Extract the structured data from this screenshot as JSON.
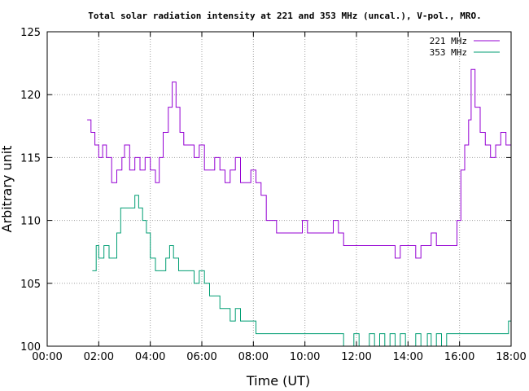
{
  "chart_data": {
    "type": "line",
    "title": "Total solar radiation intensity at 221 and 353 MHz (uncal.), V-pol., MRO.",
    "xlabel": "Time (UT)",
    "ylabel": "Arbitrary unit",
    "xlim": [
      0,
      18
    ],
    "ylim": [
      100,
      125
    ],
    "x_ticks": [
      0,
      2,
      4,
      6,
      8,
      10,
      12,
      14,
      16,
      18
    ],
    "x_tick_labels": [
      "00:00",
      "02:00",
      "04:00",
      "06:00",
      "08:00",
      "10:00",
      "12:00",
      "14:00",
      "16:00",
      "18:00"
    ],
    "y_ticks": [
      100,
      105,
      110,
      115,
      120,
      125
    ],
    "y_tick_labels": [
      "100",
      "105",
      "110",
      "115",
      "120",
      "125"
    ],
    "grid": true,
    "legend_position": "top-right",
    "series": [
      {
        "name": "221 MHz",
        "color": "#9400d3",
        "points": [
          [
            1.55,
            118
          ],
          [
            1.7,
            117
          ],
          [
            1.85,
            116
          ],
          [
            2.0,
            115
          ],
          [
            2.15,
            116
          ],
          [
            2.3,
            115
          ],
          [
            2.5,
            113
          ],
          [
            2.7,
            114
          ],
          [
            2.9,
            115
          ],
          [
            3.0,
            116
          ],
          [
            3.2,
            114
          ],
          [
            3.4,
            115
          ],
          [
            3.6,
            114
          ],
          [
            3.8,
            115
          ],
          [
            4.0,
            114
          ],
          [
            4.2,
            113
          ],
          [
            4.35,
            115
          ],
          [
            4.5,
            117
          ],
          [
            4.7,
            119
          ],
          [
            4.85,
            121
          ],
          [
            5.0,
            119
          ],
          [
            5.15,
            117
          ],
          [
            5.3,
            116
          ],
          [
            5.5,
            116
          ],
          [
            5.7,
            115
          ],
          [
            5.9,
            116
          ],
          [
            6.1,
            114
          ],
          [
            6.3,
            114
          ],
          [
            6.5,
            115
          ],
          [
            6.7,
            114
          ],
          [
            6.9,
            113
          ],
          [
            7.1,
            114
          ],
          [
            7.3,
            115
          ],
          [
            7.5,
            113
          ],
          [
            7.7,
            113
          ],
          [
            7.9,
            114
          ],
          [
            8.1,
            113
          ],
          [
            8.3,
            112
          ],
          [
            8.5,
            110
          ],
          [
            8.7,
            110
          ],
          [
            8.9,
            109
          ],
          [
            9.1,
            109
          ],
          [
            9.3,
            109
          ],
          [
            9.5,
            109
          ],
          [
            9.7,
            109
          ],
          [
            9.9,
            110
          ],
          [
            10.1,
            109
          ],
          [
            10.3,
            109
          ],
          [
            10.5,
            109
          ],
          [
            10.7,
            109
          ],
          [
            10.9,
            109
          ],
          [
            11.1,
            110
          ],
          [
            11.3,
            109
          ],
          [
            11.5,
            108
          ],
          [
            11.7,
            108
          ],
          [
            11.9,
            108
          ],
          [
            12.1,
            108
          ],
          [
            12.3,
            108
          ],
          [
            12.5,
            108
          ],
          [
            12.7,
            108
          ],
          [
            12.9,
            108
          ],
          [
            13.1,
            108
          ],
          [
            13.3,
            108
          ],
          [
            13.5,
            107
          ],
          [
            13.7,
            108
          ],
          [
            13.9,
            108
          ],
          [
            14.1,
            108
          ],
          [
            14.3,
            107
          ],
          [
            14.5,
            108
          ],
          [
            14.75,
            108
          ],
          [
            14.9,
            109
          ],
          [
            15.1,
            108
          ],
          [
            15.3,
            108
          ],
          [
            15.5,
            108
          ],
          [
            15.7,
            108
          ],
          [
            15.9,
            110
          ],
          [
            16.05,
            114
          ],
          [
            16.2,
            116
          ],
          [
            16.35,
            118
          ],
          [
            16.45,
            122
          ],
          [
            16.6,
            119
          ],
          [
            16.8,
            117
          ],
          [
            17.0,
            116
          ],
          [
            17.2,
            115
          ],
          [
            17.4,
            116
          ],
          [
            17.6,
            117
          ],
          [
            17.8,
            116
          ],
          [
            18.0,
            117
          ]
        ]
      },
      {
        "name": "353 MHz",
        "color": "#009e73",
        "points": [
          [
            1.75,
            106
          ],
          [
            1.9,
            108
          ],
          [
            2.0,
            107
          ],
          [
            2.2,
            108
          ],
          [
            2.4,
            107
          ],
          [
            2.6,
            107
          ],
          [
            2.7,
            109
          ],
          [
            2.85,
            111
          ],
          [
            3.0,
            111
          ],
          [
            3.2,
            111
          ],
          [
            3.4,
            112
          ],
          [
            3.55,
            111
          ],
          [
            3.7,
            110
          ],
          [
            3.85,
            109
          ],
          [
            4.0,
            107
          ],
          [
            4.2,
            106
          ],
          [
            4.4,
            106
          ],
          [
            4.6,
            107
          ],
          [
            4.75,
            108
          ],
          [
            4.9,
            107
          ],
          [
            5.1,
            106
          ],
          [
            5.3,
            106
          ],
          [
            5.5,
            106
          ],
          [
            5.7,
            105
          ],
          [
            5.9,
            106
          ],
          [
            6.1,
            105
          ],
          [
            6.3,
            104
          ],
          [
            6.5,
            104
          ],
          [
            6.7,
            103
          ],
          [
            6.9,
            103
          ],
          [
            7.1,
            102
          ],
          [
            7.3,
            103
          ],
          [
            7.5,
            102
          ],
          [
            7.7,
            102
          ],
          [
            7.9,
            102
          ],
          [
            8.1,
            101
          ],
          [
            8.3,
            101
          ],
          [
            8.5,
            101
          ],
          [
            8.7,
            101
          ],
          [
            8.9,
            101
          ],
          [
            9.1,
            101
          ],
          [
            9.3,
            101
          ],
          [
            9.5,
            101
          ],
          [
            9.7,
            101
          ],
          [
            9.9,
            101
          ],
          [
            10.1,
            101
          ],
          [
            10.3,
            101
          ],
          [
            10.5,
            101
          ],
          [
            10.7,
            101
          ],
          [
            10.9,
            101
          ],
          [
            11.1,
            101
          ],
          [
            11.3,
            101
          ],
          [
            11.5,
            100
          ],
          [
            11.7,
            100
          ],
          [
            11.9,
            101
          ],
          [
            12.1,
            100
          ],
          [
            12.3,
            100
          ],
          [
            12.5,
            101
          ],
          [
            12.7,
            100
          ],
          [
            12.9,
            101
          ],
          [
            13.1,
            100
          ],
          [
            13.3,
            101
          ],
          [
            13.5,
            100
          ],
          [
            13.7,
            101
          ],
          [
            13.9,
            100
          ],
          [
            14.1,
            100
          ],
          [
            14.3,
            101
          ],
          [
            14.5,
            100
          ],
          [
            14.75,
            101
          ],
          [
            14.9,
            100
          ],
          [
            15.1,
            101
          ],
          [
            15.3,
            100
          ],
          [
            15.5,
            101
          ],
          [
            15.7,
            101
          ],
          [
            15.9,
            101
          ],
          [
            16.1,
            101
          ],
          [
            16.3,
            101
          ],
          [
            16.5,
            101
          ],
          [
            16.7,
            101
          ],
          [
            16.9,
            101
          ],
          [
            17.1,
            101
          ],
          [
            17.3,
            101
          ],
          [
            17.5,
            101
          ],
          [
            17.7,
            101
          ],
          [
            17.9,
            102
          ],
          [
            18.0,
            102
          ]
        ]
      }
    ]
  }
}
